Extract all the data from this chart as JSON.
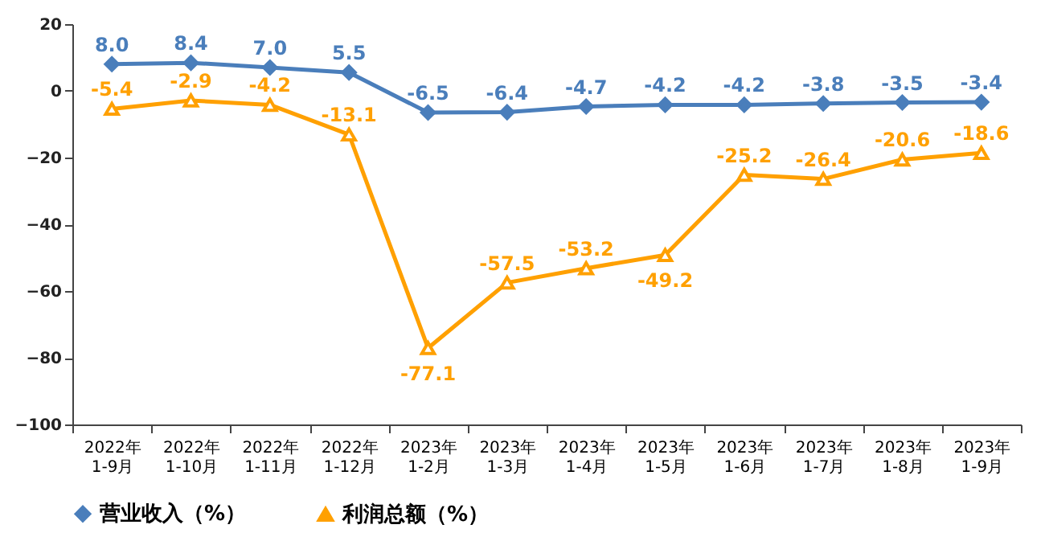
{
  "chart_data": {
    "type": "line",
    "categories": [
      "2022年\n1-9月",
      "2022年\n1-10月",
      "2022年\n1-11月",
      "2022年\n1-12月",
      "2023年\n1-2月",
      "2023年\n1-3月",
      "2023年\n1-4月",
      "2023年\n1-5月",
      "2023年\n1-6月",
      "2023年\n1-7月",
      "2023年\n1-8月",
      "2023年\n1-9月"
    ],
    "series": [
      {
        "name": "营业收入（%）",
        "color": "#4a7ebb",
        "marker": "diamond",
        "values": [
          8.0,
          8.4,
          7.0,
          5.5,
          -6.5,
          -6.4,
          -4.7,
          -4.2,
          -4.2,
          -3.8,
          -3.5,
          -3.4
        ],
        "value_labels": [
          "8.0",
          "8.4",
          "7.0",
          "5.5",
          "-6.5",
          "-6.4",
          "-4.7",
          "-4.2",
          "-4.2",
          "-3.8",
          "-3.5",
          "-3.4"
        ]
      },
      {
        "name": "利润总额（%）",
        "color": "#ffa000",
        "marker": "triangle",
        "values": [
          -5.4,
          -2.9,
          -4.2,
          -13.1,
          -77.1,
          -57.5,
          -53.2,
          -49.2,
          -25.2,
          -26.4,
          -20.6,
          -18.6
        ],
        "value_labels": [
          "-5.4",
          "-2.9",
          "-4.2",
          "-13.1",
          "-77.1",
          "-57.5",
          "-53.2",
          "-49.2",
          "-25.2",
          "-26.4",
          "-20.6",
          "-18.6"
        ]
      }
    ],
    "ylim": [
      -100,
      20
    ],
    "yticks": [
      -100,
      -80,
      -60,
      -40,
      -20,
      0,
      20
    ],
    "legend": "bottom"
  }
}
